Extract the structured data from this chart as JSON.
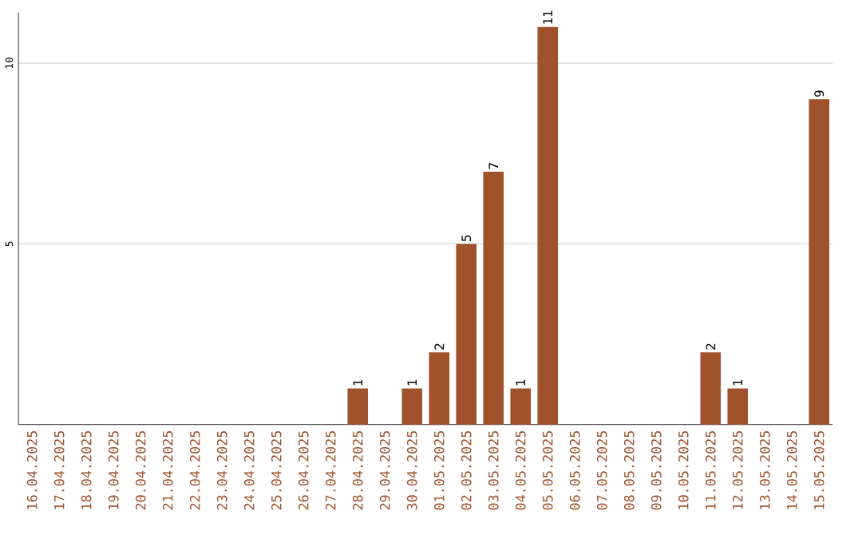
{
  "chart_data": {
    "type": "bar",
    "categories": [
      "16.04.2025",
      "17.04.2025",
      "18.04.2025",
      "19.04.2025",
      "20.04.2025",
      "21.04.2025",
      "22.04.2025",
      "23.04.2025",
      "24.04.2025",
      "25.04.2025",
      "26.04.2025",
      "27.04.2025",
      "28.04.2025",
      "29.04.2025",
      "30.04.2025",
      "01.05.2025",
      "02.05.2025",
      "03.05.2025",
      "04.05.2025",
      "05.05.2025",
      "06.05.2025",
      "07.05.2025",
      "08.05.2025",
      "09.05.2025",
      "10.05.2025",
      "11.05.2025",
      "12.05.2025",
      "13.05.2025",
      "14.05.2025",
      "15.05.2025"
    ],
    "values": [
      0,
      0,
      0,
      0,
      0,
      0,
      0,
      0,
      0,
      0,
      0,
      0,
      1,
      0,
      1,
      2,
      5,
      7,
      1,
      11,
      0,
      0,
      0,
      0,
      0,
      2,
      1,
      0,
      0,
      9
    ],
    "value_labels": [
      null,
      null,
      null,
      null,
      null,
      null,
      null,
      null,
      null,
      null,
      null,
      null,
      "1",
      null,
      "1",
      "2",
      "5",
      "7",
      "1",
      "11",
      null,
      null,
      null,
      null,
      null,
      "2",
      "1",
      null,
      null,
      "9"
    ],
    "color": "#a0522d",
    "ylim": [
      0,
      11.4
    ],
    "yticks": [
      5,
      10
    ],
    "grid": "y"
  }
}
